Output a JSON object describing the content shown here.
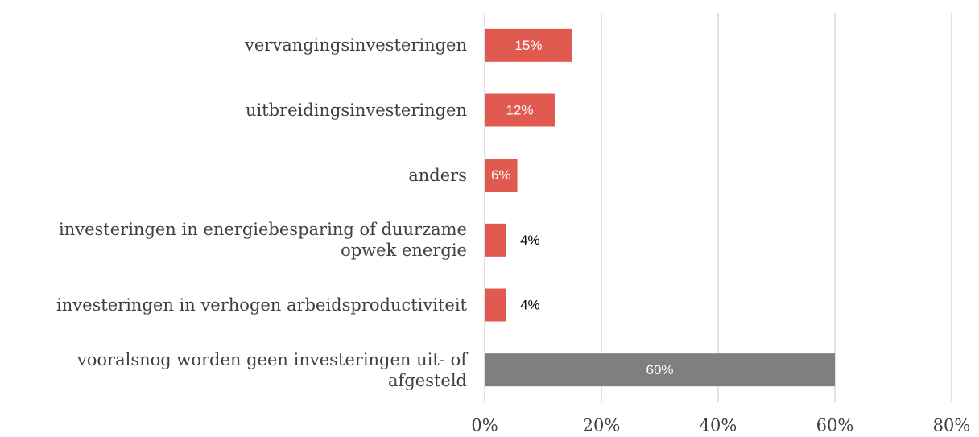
{
  "chart_data": {
    "type": "barh",
    "categories": [
      "vervangingsinvesteringen",
      "uitbreidingsinvesteringen",
      "anders",
      "investeringen in energiebesparing of duurzame opwek energie",
      "investeringen in verhogen arbeidsproductiviteit",
      "vooralsnog worden geen investeringen uit- of afgesteld"
    ],
    "values": [
      15,
      12,
      5.6,
      3.6,
      3.6,
      60
    ],
    "value_labels": [
      "15%",
      "12%",
      "6%",
      "4%",
      "4%",
      "60%"
    ],
    "colors": [
      "#e05a4f",
      "#e05a4f",
      "#e05a4f",
      "#e05a4f",
      "#e05a4f",
      "#7f7f7f"
    ],
    "xlim": [
      0,
      80
    ],
    "xticks": [
      {
        "value": 0,
        "label": "0%"
      },
      {
        "value": 20,
        "label": "20%"
      },
      {
        "value": 40,
        "label": "40%"
      },
      {
        "value": 60,
        "label": "60%"
      },
      {
        "value": 80,
        "label": "80%"
      }
    ],
    "grid": true
  }
}
